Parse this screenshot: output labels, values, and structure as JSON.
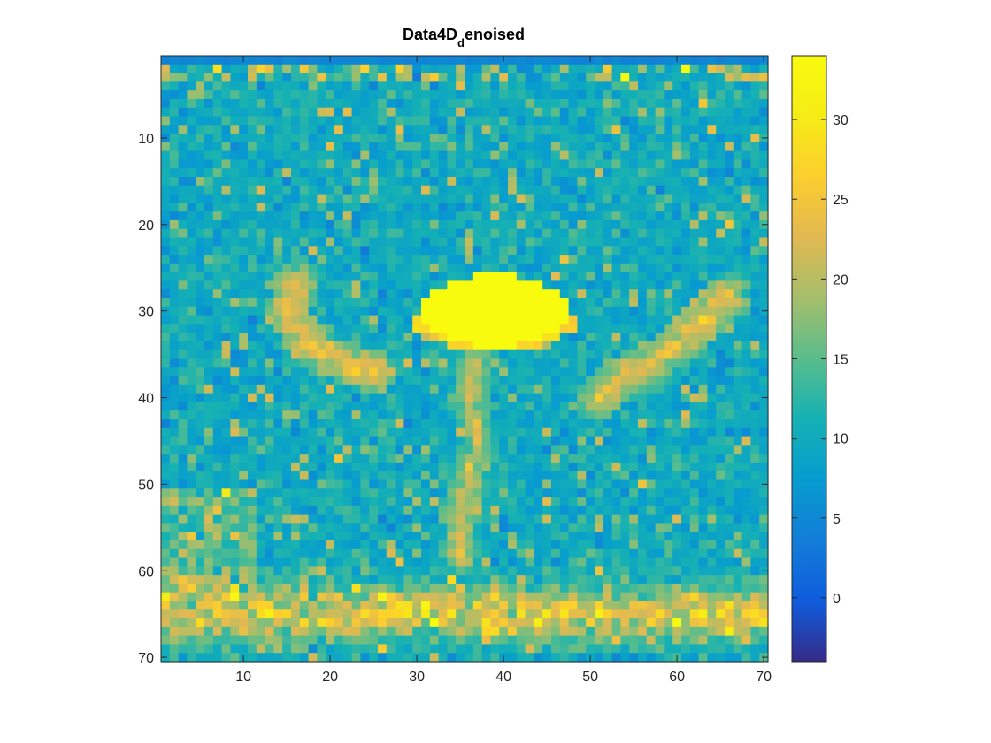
{
  "chart_data": {
    "type": "heatmap",
    "title": {
      "main": "Data4D",
      "subscript": "d",
      "rest": "enoised"
    },
    "colormap": "parula",
    "grid": false,
    "colorbar_placement": "right",
    "x": {
      "range": [
        0.5,
        70.5
      ],
      "ticks": [
        10,
        20,
        30,
        40,
        50,
        60,
        70
      ],
      "tick_labels": [
        "10",
        "20",
        "30",
        "40",
        "50",
        "60",
        "70"
      ]
    },
    "y": {
      "range": [
        0.5,
        70.5
      ],
      "reversed": true,
      "ticks": [
        10,
        20,
        30,
        40,
        50,
        60,
        70
      ],
      "tick_labels": [
        "10",
        "20",
        "30",
        "40",
        "50",
        "60",
        "70"
      ]
    },
    "color_limits": [
      -4,
      34
    ],
    "colorbar": {
      "ticks": [
        0,
        5,
        10,
        15,
        20,
        25,
        30
      ],
      "tick_labels": [
        "0",
        "5",
        "10",
        "15",
        "20",
        "25",
        "30"
      ]
    },
    "grid_size": [
      70,
      70
    ],
    "features": [
      {
        "label": "background",
        "value": 10
      },
      {
        "label": "top edge row",
        "row": 1,
        "value": 4
      },
      {
        "label": "central bright blob",
        "cx": 39,
        "cy": 30,
        "rx": 8.5,
        "ry": 4.2,
        "value": 34
      },
      {
        "label": "left arc",
        "points": [
          [
            16,
            27
          ],
          [
            15,
            30
          ],
          [
            17,
            33
          ],
          [
            19,
            35
          ],
          [
            22,
            36
          ],
          [
            25,
            37
          ]
        ],
        "value": 24
      },
      {
        "label": "right arc",
        "points": [
          [
            66,
            28
          ],
          [
            63,
            31
          ],
          [
            60,
            34
          ],
          [
            57,
            36
          ],
          [
            53,
            38
          ],
          [
            51,
            40
          ]
        ],
        "value": 24
      },
      {
        "label": "central column",
        "points": [
          [
            37,
            36
          ],
          [
            36,
            40
          ],
          [
            37,
            45
          ],
          [
            36,
            50
          ],
          [
            35,
            54
          ],
          [
            35,
            58
          ]
        ],
        "value": 21
      },
      {
        "label": "bottom band",
        "row_range": [
          60,
          69
        ],
        "value": 20
      }
    ]
  }
}
